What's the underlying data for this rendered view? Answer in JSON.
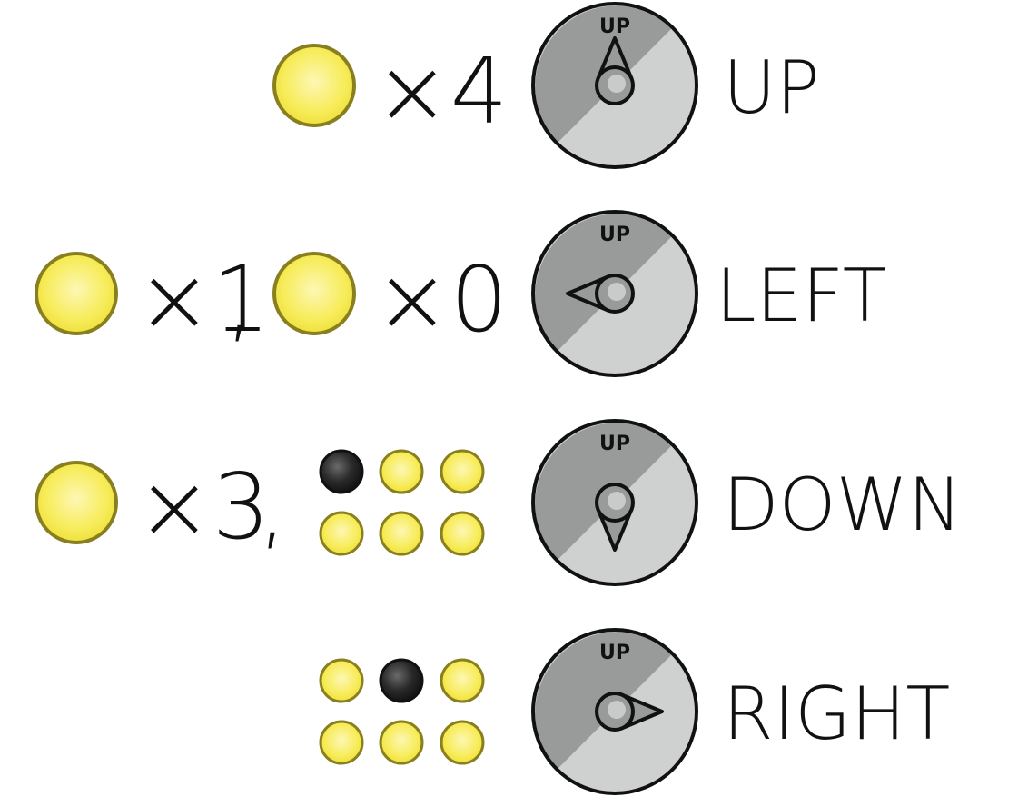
{
  "colors": {
    "coin_fill": "#f7ec5a",
    "coin_stroke": "#8a7f1e",
    "dot_dark": "#222222",
    "dial_dark": "#999b9b",
    "dial_light": "#cfd1d1",
    "dial_stroke": "#111111",
    "text": "#111111"
  },
  "rows": [
    {
      "condition": [
        {
          "kind": "coin",
          "count": "×4"
        }
      ],
      "dial": {
        "top_label": "UP",
        "pointer": "up",
        "pointer_name": "pointer-up-icon"
      },
      "direction": "UP"
    },
    {
      "condition": [
        {
          "kind": "coin",
          "count": "×1",
          "separator": ","
        },
        {
          "kind": "coin",
          "count": "×0"
        }
      ],
      "dial": {
        "top_label": "UP",
        "pointer": "left",
        "pointer_name": "pointer-left-icon"
      },
      "direction": "LEFT"
    },
    {
      "condition": [
        {
          "kind": "coin",
          "count": "×3",
          "separator": ","
        },
        {
          "kind": "dot-grid",
          "dark_index": 0
        }
      ],
      "dial": {
        "top_label": "UP",
        "pointer": "down",
        "pointer_name": "pointer-down-icon"
      },
      "direction": "DOWN"
    },
    {
      "condition": [
        {
          "kind": "dot-grid",
          "dark_index": 1
        }
      ],
      "dial": {
        "top_label": "UP",
        "pointer": "right",
        "pointer_name": "pointer-right-icon"
      },
      "direction": "RIGHT"
    }
  ]
}
